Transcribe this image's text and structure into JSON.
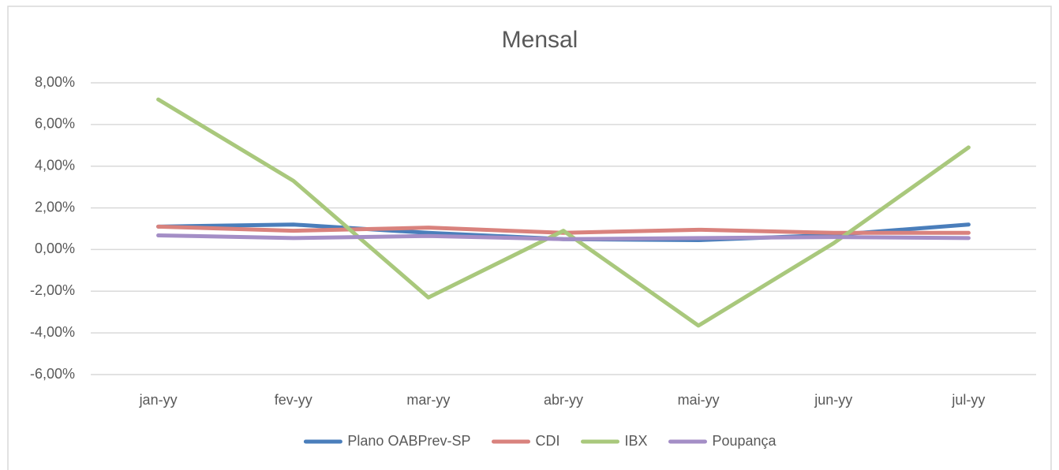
{
  "chart_data": {
    "type": "line",
    "title": "Mensal",
    "categories": [
      "jan-yy",
      "fev-yy",
      "mar-yy",
      "abr-yy",
      "mai-yy",
      "jun-yy",
      "jul-yy"
    ],
    "series": [
      {
        "name": "Plano OABPrev-SP",
        "color": "#4a7ebb",
        "values": [
          1.1,
          1.2,
          0.8,
          0.5,
          0.45,
          0.7,
          1.2
        ]
      },
      {
        "name": "CDI",
        "color": "#d9827d",
        "values": [
          1.1,
          0.9,
          1.05,
          0.8,
          0.95,
          0.8,
          0.8
        ]
      },
      {
        "name": "IBX",
        "color": "#a9c87c",
        "values": [
          7.2,
          3.3,
          -2.3,
          0.9,
          -3.65,
          0.3,
          4.9
        ]
      },
      {
        "name": "Poupança",
        "color": "#a48ec6",
        "values": [
          0.68,
          0.55,
          0.65,
          0.5,
          0.55,
          0.6,
          0.55
        ]
      }
    ],
    "ylim": [
      -6,
      8
    ],
    "yticks": [
      {
        "value": -6,
        "label": "-6,00%"
      },
      {
        "value": -4,
        "label": "-4,00%"
      },
      {
        "value": -2,
        "label": "-2,00%"
      },
      {
        "value": 0,
        "label": "0,00%"
      },
      {
        "value": 2,
        "label": "2,00%"
      },
      {
        "value": 4,
        "label": "4,00%"
      },
      {
        "value": 6,
        "label": "6,00%"
      },
      {
        "value": 8,
        "label": "8,00%"
      }
    ],
    "grid": true,
    "legend": "bottom"
  }
}
